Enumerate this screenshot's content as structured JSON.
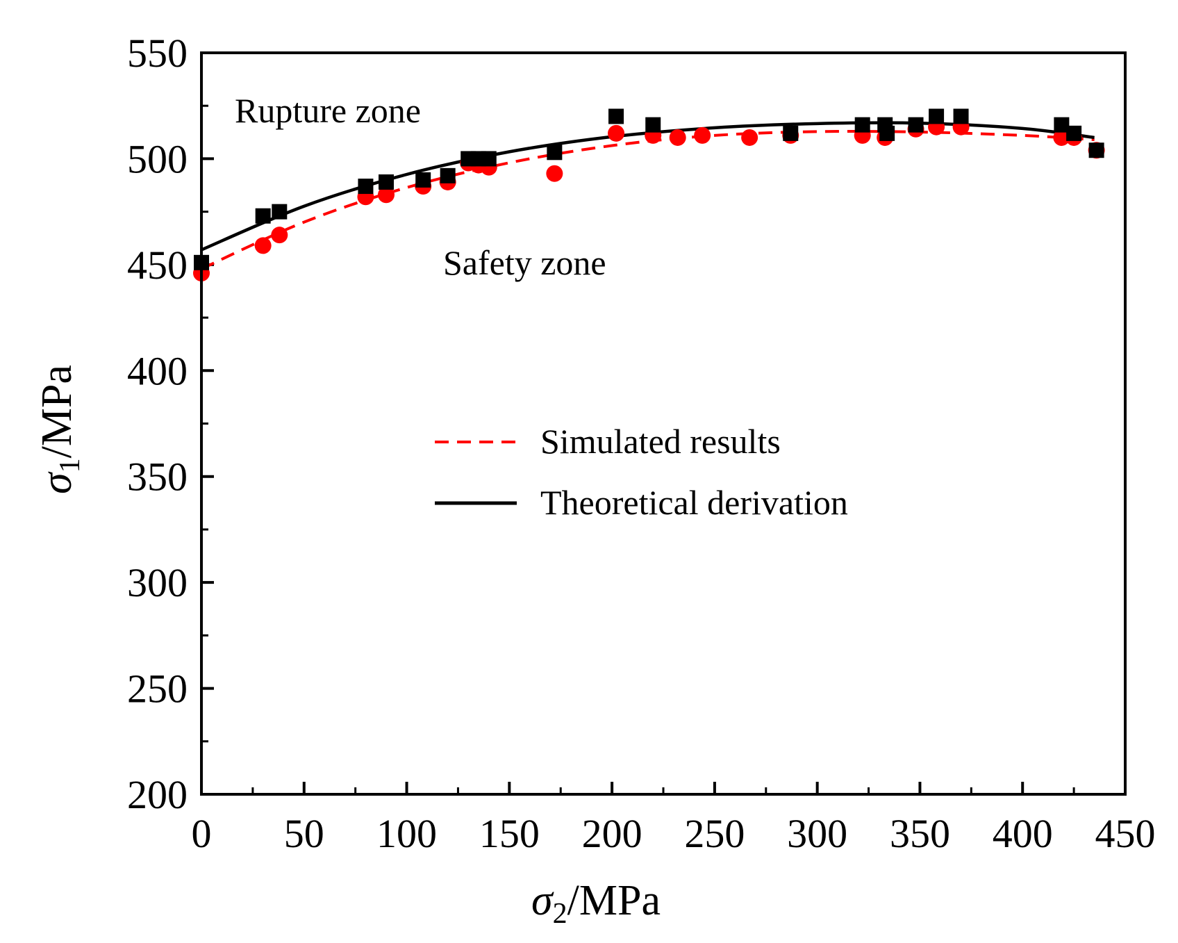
{
  "chart_data": {
    "type": "scatter",
    "xlabel": {
      "symbol": "σ",
      "subscript": "2",
      "unit": "/MPa"
    },
    "ylabel": {
      "symbol": "σ",
      "subscript": "1",
      "unit": "/MPa"
    },
    "xlim": [
      0,
      450
    ],
    "ylim": [
      200,
      550
    ],
    "xticks": [
      0,
      50,
      100,
      150,
      200,
      250,
      300,
      350,
      400,
      450
    ],
    "yticks": [
      200,
      250,
      300,
      350,
      400,
      450,
      500,
      550
    ],
    "annotations": [
      {
        "name": "rupture-zone-label",
        "text": "Rupture zone"
      },
      {
        "name": "safety-zone-label",
        "text": "Safety zone"
      }
    ],
    "legend": [
      {
        "name": "simulated",
        "label": "Simulated results",
        "color": "#ff0000",
        "style": "dashed"
      },
      {
        "name": "theoretical",
        "label": "Theoretical derivation",
        "color": "#000000",
        "style": "solid"
      }
    ],
    "series": [
      {
        "name": "Theoretical derivation points",
        "marker": "square",
        "color": "#000000",
        "x": [
          0,
          30,
          38,
          80,
          90,
          108,
          120,
          130,
          135,
          140,
          172,
          202,
          220,
          287,
          322,
          333,
          334,
          348,
          358,
          370,
          419,
          425,
          436
        ],
        "y": [
          451,
          473,
          475,
          487,
          489,
          490,
          492,
          500,
          500,
          500,
          503,
          520,
          516,
          512,
          516,
          516,
          512,
          516,
          520,
          520,
          516,
          512,
          504
        ]
      },
      {
        "name": "Simulated results points",
        "marker": "circle",
        "color": "#ff0000",
        "x": [
          0,
          30,
          38,
          80,
          90,
          108,
          120,
          130,
          135,
          140,
          172,
          202,
          220,
          232,
          244,
          267,
          287,
          322,
          333,
          348,
          358,
          370,
          419,
          425,
          436
        ],
        "y": [
          446,
          459,
          464,
          482,
          483,
          487,
          489,
          498,
          497,
          496,
          493,
          512,
          511,
          510,
          511,
          510,
          511,
          511,
          510,
          514,
          515,
          515,
          510,
          510,
          504
        ]
      },
      {
        "name": "Simulated results",
        "kind": "line",
        "style": "dashed",
        "color": "#ff0000",
        "x": [
          0,
          50,
          100,
          150,
          200,
          250,
          300,
          350,
          400,
          435
        ],
        "y": [
          448.0,
          470.1,
          486.4,
          498.1,
          506.2,
          511.0,
          512.8,
          512.6,
          511.0,
          509.0
        ]
      },
      {
        "name": "Theoretical derivation",
        "kind": "line",
        "style": "solid",
        "color": "#000000",
        "x": [
          0,
          50,
          100,
          150,
          200,
          250,
          300,
          350,
          400,
          435
        ],
        "y": [
          457.0,
          477.6,
          492.6,
          503.3,
          510.4,
          514.6,
          516.6,
          516.8,
          514.3,
          510.0
        ]
      }
    ]
  }
}
